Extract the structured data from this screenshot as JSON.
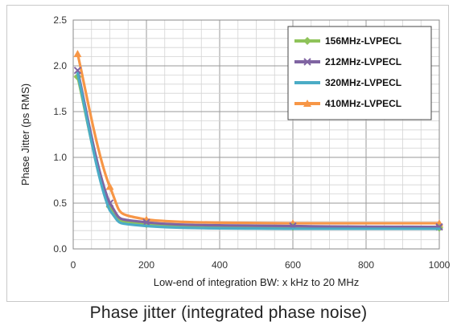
{
  "caption": "Phase jitter (integrated phase noise)",
  "chart_data": {
    "type": "line",
    "title": "",
    "xlabel": "Low-end of integration BW: x kHz to 20 MHz",
    "ylabel": "Phase Jitter (ps RMS)",
    "xlim": [
      0,
      1000
    ],
    "ylim": [
      0,
      2.5
    ],
    "xticks": [
      0,
      200,
      400,
      600,
      800,
      1000
    ],
    "yticks": [
      "0.0",
      "0.5",
      "1.0",
      "1.5",
      "2.0",
      "2.5"
    ],
    "grid": true,
    "legend": "top-right",
    "series": [
      {
        "name": "156MHz-LVPECL",
        "color": "#8fc35a",
        "marker": "diamond",
        "x": [
          12,
          100,
          200,
          600,
          1000
        ],
        "y": [
          1.88,
          0.46,
          0.27,
          0.24,
          0.23
        ]
      },
      {
        "name": "212MHz-LVPECL",
        "color": "#8064a2",
        "marker": "x",
        "x": [
          12,
          100,
          200,
          600,
          1000
        ],
        "y": [
          1.95,
          0.5,
          0.29,
          0.25,
          0.24
        ]
      },
      {
        "name": "320MHz-LVPECL",
        "color": "#4bacc6",
        "marker": "none",
        "x": [
          12,
          100,
          200,
          600,
          1000
        ],
        "y": [
          1.92,
          0.42,
          0.25,
          0.22,
          0.22
        ]
      },
      {
        "name": "410MHz-LVPECL",
        "color": "#f79646",
        "marker": "triangle",
        "x": [
          12,
          100,
          200,
          600,
          1000
        ],
        "y": [
          2.13,
          0.68,
          0.32,
          0.28,
          0.28
        ]
      }
    ]
  }
}
